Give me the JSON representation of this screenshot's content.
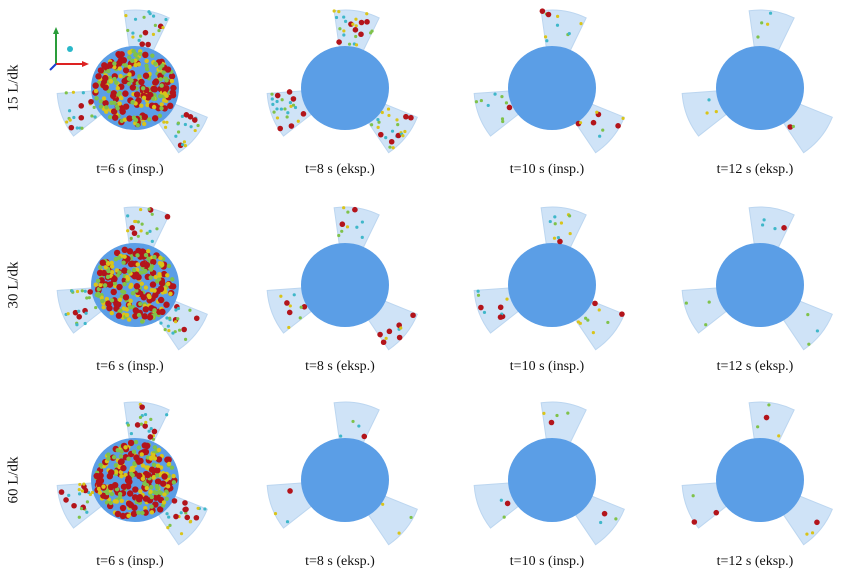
{
  "figure": {
    "rows": [
      {
        "label": "15 L/dk",
        "panels": [
          {
            "caption": "t=6 s (insp.)",
            "state": "dense"
          },
          {
            "caption": "t=8 s (eksp.)",
            "state": "moderate"
          },
          {
            "caption": "t=10 s (insp.)",
            "state": "sparse"
          },
          {
            "caption": "t=12 s (eksp.)",
            "state": "very-sparse"
          }
        ]
      },
      {
        "label": "30 L/dk",
        "panels": [
          {
            "caption": "t=6 s (insp.)",
            "state": "dense"
          },
          {
            "caption": "t=8 s (eksp.)",
            "state": "sparse"
          },
          {
            "caption": "t=10 s (insp.)",
            "state": "sparse"
          },
          {
            "caption": "t=12 s (eksp.)",
            "state": "very-sparse"
          }
        ]
      },
      {
        "label": "60 L/dk",
        "panels": [
          {
            "caption": "t=6 s (insp.)",
            "state": "dense"
          },
          {
            "caption": "t=8 s (eksp.)",
            "state": "very-sparse"
          },
          {
            "caption": "t=10 s (insp.)",
            "state": "very-sparse"
          },
          {
            "caption": "t=12 s (eksp.)",
            "state": "very-sparse"
          }
        ]
      }
    ],
    "colors": {
      "blade": "#cfe3f7",
      "blade_edge": "#bcd6f0",
      "hub": "#5b9ee6",
      "particle_red": "#b3141b",
      "particle_yellow": "#d9c41a",
      "particle_green": "#7fc24a",
      "particle_cyan": "#3fb7c9"
    },
    "axes_triad_icon": "xyz-axes-icon"
  }
}
